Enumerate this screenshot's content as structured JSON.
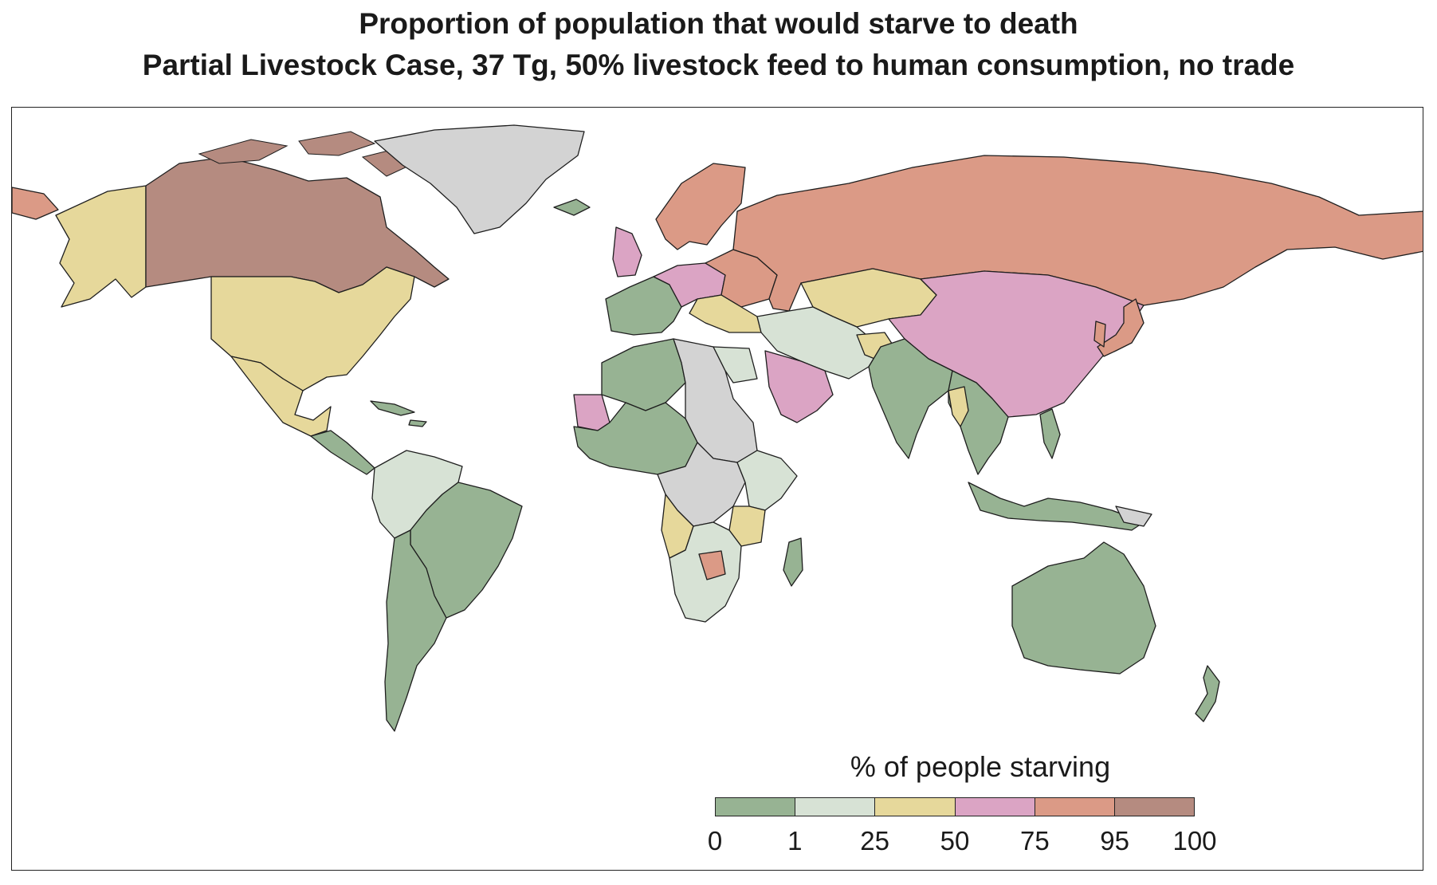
{
  "title": {
    "line1": "Proportion of population that would starve to death",
    "line2": "Partial Livestock Case, 37 Tg, 50% livestock feed to human consumption, no trade"
  },
  "legend": {
    "title": "% of people starving",
    "bins": [
      {
        "from": 0,
        "to": 1,
        "color": "#97b393"
      },
      {
        "from": 1,
        "to": 25,
        "color": "#d7e2d5"
      },
      {
        "from": 25,
        "to": 50,
        "color": "#e6d89b"
      },
      {
        "from": 50,
        "to": 75,
        "color": "#dba4c4"
      },
      {
        "from": 75,
        "to": 95,
        "color": "#db9a86"
      },
      {
        "from": 95,
        "to": 100,
        "color": "#b58b80"
      }
    ],
    "tick_labels": [
      "0",
      "1",
      "25",
      "50",
      "75",
      "95",
      "100"
    ],
    "no_data_color": "#d3d3d3"
  },
  "map": {
    "projection": "equirectangular",
    "regions": [
      {
        "name": "Canada",
        "bin": 5
      },
      {
        "name": "Alaska",
        "bin": 2
      },
      {
        "name": "United States",
        "bin": 2
      },
      {
        "name": "Mexico",
        "bin": 2
      },
      {
        "name": "Greenland",
        "bin": "none"
      },
      {
        "name": "Central America",
        "bin": 0
      },
      {
        "name": "Caribbean",
        "bin": 0
      },
      {
        "name": "Northern South America",
        "bin": 1
      },
      {
        "name": "Brazil",
        "bin": 0
      },
      {
        "name": "Southern South America",
        "bin": 0
      },
      {
        "name": "Iceland",
        "bin": 0
      },
      {
        "name": "United Kingdom",
        "bin": 3
      },
      {
        "name": "Scandinavia",
        "bin": 4
      },
      {
        "name": "Western Europe",
        "bin": 0
      },
      {
        "name": "Central Europe",
        "bin": 3
      },
      {
        "name": "Eastern Europe",
        "bin": 4
      },
      {
        "name": "Russia",
        "bin": 4
      },
      {
        "name": "Kazakhstan",
        "bin": 2
      },
      {
        "name": "China",
        "bin": 3
      },
      {
        "name": "Japan",
        "bin": 4
      },
      {
        "name": "Middle East",
        "bin": 1
      },
      {
        "name": "Arabian Peninsula",
        "bin": 3
      },
      {
        "name": "India",
        "bin": 0
      },
      {
        "name": "Southeast Asia",
        "bin": 0
      },
      {
        "name": "Indonesia",
        "bin": 0
      },
      {
        "name": "Australia",
        "bin": 0
      },
      {
        "name": "New Zealand",
        "bin": 0
      },
      {
        "name": "North Africa",
        "bin": 0
      },
      {
        "name": "Libya and Sudan",
        "bin": "none"
      },
      {
        "name": "Egypt",
        "bin": 1
      },
      {
        "name": "Mauritania",
        "bin": 3
      },
      {
        "name": "West Africa",
        "bin": 0
      },
      {
        "name": "Central Africa",
        "bin": "none"
      },
      {
        "name": "East Africa",
        "bin": 1
      },
      {
        "name": "Angola",
        "bin": 2
      },
      {
        "name": "Tanzania",
        "bin": 2
      },
      {
        "name": "Southern Africa",
        "bin": 1
      },
      {
        "name": "Botswana",
        "bin": 4
      },
      {
        "name": "Madagascar",
        "bin": 0
      }
    ]
  }
}
